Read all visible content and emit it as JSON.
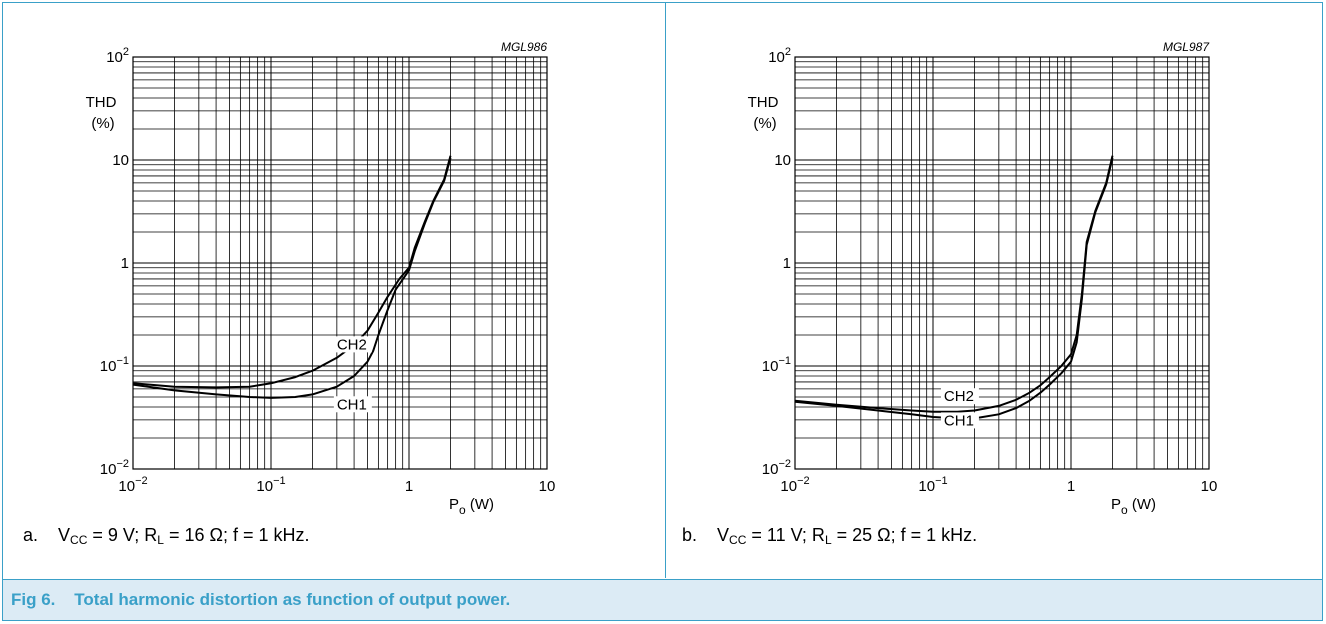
{
  "figure": {
    "caption": "Fig 6.    Total harmonic distortion as function of output power."
  },
  "colors": {
    "accent": "#3aa0c8",
    "caption_bg": "#dcebf5",
    "curve": "#000000"
  },
  "chart_data": [
    {
      "type": "line",
      "id_label": "MGL986",
      "xscale": "log",
      "yscale": "log",
      "xlim": [
        0.01,
        10
      ],
      "ylim": [
        0.01,
        100
      ],
      "ylabel": "THD",
      "yunit": "(%)",
      "xlabel": "P",
      "xlabel_sub": "o",
      "xunit": " (W)",
      "xticks": [
        {
          "value": 0.01,
          "base": "10",
          "exp": "−2"
        },
        {
          "value": 0.1,
          "base": "10",
          "exp": "−1"
        },
        {
          "value": 1,
          "base": "1",
          "exp": ""
        },
        {
          "value": 10,
          "base": "10",
          "exp": ""
        }
      ],
      "yticks": [
        {
          "value": 100,
          "base": "10",
          "exp": "2"
        },
        {
          "value": 10,
          "base": "10",
          "exp": ""
        },
        {
          "value": 1,
          "base": "1",
          "exp": ""
        },
        {
          "value": 0.1,
          "base": "10",
          "exp": "−1"
        },
        {
          "value": 0.01,
          "base": "10",
          "exp": "−2"
        }
      ],
      "series": [
        {
          "name": "CH2",
          "points": [
            [
              0.01,
              0.068
            ],
            [
              0.02,
              0.063
            ],
            [
              0.04,
              0.062
            ],
            [
              0.07,
              0.063
            ],
            [
              0.1,
              0.068
            ],
            [
              0.15,
              0.078
            ],
            [
              0.2,
              0.09
            ],
            [
              0.3,
              0.12
            ],
            [
              0.4,
              0.16
            ],
            [
              0.5,
              0.22
            ],
            [
              0.6,
              0.33
            ],
            [
              0.7,
              0.47
            ],
            [
              0.85,
              0.7
            ],
            [
              1.0,
              0.9
            ],
            [
              1.1,
              1.4
            ],
            [
              1.3,
              2.5
            ],
            [
              1.5,
              4.0
            ],
            [
              1.8,
              6.5
            ],
            [
              2.0,
              11.0
            ]
          ]
        },
        {
          "name": "CH1",
          "points": [
            [
              0.01,
              0.066
            ],
            [
              0.02,
              0.058
            ],
            [
              0.04,
              0.053
            ],
            [
              0.07,
              0.05
            ],
            [
              0.1,
              0.049
            ],
            [
              0.15,
              0.05
            ],
            [
              0.2,
              0.053
            ],
            [
              0.3,
              0.063
            ],
            [
              0.4,
              0.08
            ],
            [
              0.5,
              0.11
            ],
            [
              0.55,
              0.14
            ],
            [
              0.6,
              0.2
            ],
            [
              0.7,
              0.35
            ],
            [
              0.8,
              0.55
            ],
            [
              1.0,
              0.85
            ],
            [
              1.1,
              1.3
            ],
            [
              1.3,
              2.4
            ],
            [
              1.5,
              3.9
            ],
            [
              1.8,
              6.3
            ],
            [
              2.0,
              10.5
            ]
          ]
        }
      ],
      "annotations": [
        {
          "text": "CH2",
          "x": 0.3,
          "y": 0.145
        },
        {
          "text": "CH1",
          "x": 0.3,
          "y": 0.038
        }
      ],
      "subcaption": {
        "prefix": "a.",
        "v": "V",
        "vsub": "CC",
        "vval": " = 9 V; R",
        "rsub": "L",
        "rest": " = 16 Ω; f = 1 kHz."
      }
    },
    {
      "type": "line",
      "id_label": "MGL987",
      "xscale": "log",
      "yscale": "log",
      "xlim": [
        0.01,
        10
      ],
      "ylim": [
        0.01,
        100
      ],
      "ylabel": "THD",
      "yunit": "(%)",
      "xlabel": "P",
      "xlabel_sub": "o",
      "xunit": " (W)",
      "xticks": [
        {
          "value": 0.01,
          "base": "10",
          "exp": "−2"
        },
        {
          "value": 0.1,
          "base": "10",
          "exp": "−1"
        },
        {
          "value": 1,
          "base": "1",
          "exp": ""
        },
        {
          "value": 10,
          "base": "10",
          "exp": ""
        }
      ],
      "yticks": [
        {
          "value": 100,
          "base": "10",
          "exp": "2"
        },
        {
          "value": 10,
          "base": "10",
          "exp": ""
        },
        {
          "value": 1,
          "base": "1",
          "exp": ""
        },
        {
          "value": 0.1,
          "base": "10",
          "exp": "−1"
        },
        {
          "value": 0.01,
          "base": "10",
          "exp": "−2"
        }
      ],
      "series": [
        {
          "name": "CH2",
          "points": [
            [
              0.01,
              0.046
            ],
            [
              0.02,
              0.042
            ],
            [
              0.04,
              0.039
            ],
            [
              0.07,
              0.037
            ],
            [
              0.1,
              0.036
            ],
            [
              0.15,
              0.036
            ],
            [
              0.2,
              0.037
            ],
            [
              0.3,
              0.041
            ],
            [
              0.4,
              0.047
            ],
            [
              0.5,
              0.055
            ],
            [
              0.6,
              0.065
            ],
            [
              0.7,
              0.078
            ],
            [
              0.85,
              0.1
            ],
            [
              1.0,
              0.13
            ],
            [
              1.1,
              0.2
            ],
            [
              1.2,
              0.5
            ],
            [
              1.3,
              1.6
            ],
            [
              1.5,
              3.2
            ],
            [
              1.8,
              6.0
            ],
            [
              2.0,
              11.0
            ]
          ]
        },
        {
          "name": "CH1",
          "points": [
            [
              0.01,
              0.045
            ],
            [
              0.02,
              0.041
            ],
            [
              0.04,
              0.037
            ],
            [
              0.07,
              0.034
            ],
            [
              0.1,
              0.032
            ],
            [
              0.15,
              0.031
            ],
            [
              0.2,
              0.031
            ],
            [
              0.3,
              0.034
            ],
            [
              0.4,
              0.039
            ],
            [
              0.5,
              0.046
            ],
            [
              0.6,
              0.055
            ],
            [
              0.7,
              0.066
            ],
            [
              0.85,
              0.085
            ],
            [
              1.0,
              0.11
            ],
            [
              1.1,
              0.17
            ],
            [
              1.2,
              0.45
            ],
            [
              1.3,
              1.5
            ],
            [
              1.5,
              3.1
            ],
            [
              1.8,
              5.8
            ],
            [
              2.0,
              10.5
            ]
          ]
        }
      ],
      "annotations": [
        {
          "text": "CH2",
          "x": 0.12,
          "y": 0.0455
        },
        {
          "text": "CH1",
          "x": 0.12,
          "y": 0.0265
        }
      ],
      "subcaption": {
        "prefix": "b.",
        "v": "V",
        "vsub": "CC",
        "vval": " = 11 V; R",
        "rsub": "L",
        "rest": " = 25 Ω; f = 1 kHz."
      }
    }
  ]
}
